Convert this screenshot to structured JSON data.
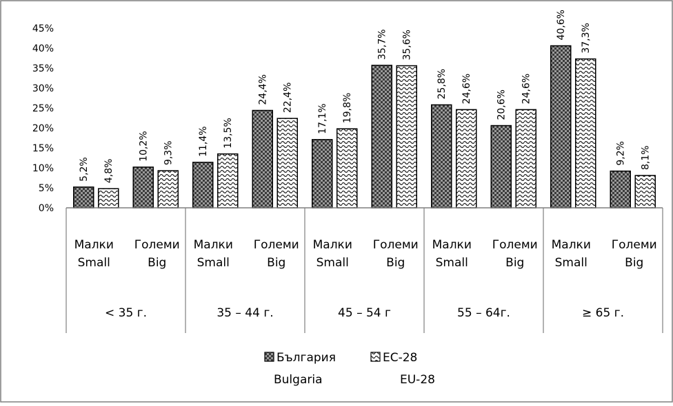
{
  "chart_data": {
    "type": "bar",
    "title": "",
    "xlabel": "",
    "ylabel": "",
    "ylim": [
      0,
      45
    ],
    "yticks": [
      "0%",
      "5%",
      "10%",
      "15%",
      "20%",
      "25%",
      "30%",
      "35%",
      "40%",
      "45%"
    ],
    "grid": false,
    "legend_position": "bottom",
    "groups": [
      {
        "label": "< 35 г.",
        "categories": [
          {
            "line1": "Малки",
            "line2": "Small"
          },
          {
            "line1": "Големи",
            "line2": "Big"
          }
        ]
      },
      {
        "label": "35 – 44 г.",
        "categories": [
          {
            "line1": "Малки",
            "line2": "Small"
          },
          {
            "line1": "Големи",
            "line2": "Big"
          }
        ]
      },
      {
        "label": "45 – 54 г",
        "categories": [
          {
            "line1": "Малки",
            "line2": "Small"
          },
          {
            "line1": "Големи",
            "line2": "Big"
          }
        ]
      },
      {
        "label": "55 – 64г.",
        "categories": [
          {
            "line1": "Малки",
            "line2": "Small"
          },
          {
            "line1": "Големи",
            "line2": "Big"
          }
        ]
      },
      {
        "label": "≥ 65 г.",
        "categories": [
          {
            "line1": "Малки",
            "line2": "Small"
          },
          {
            "line1": "Големи",
            "line2": "Big"
          }
        ]
      }
    ],
    "series": [
      {
        "name": "България",
        "name_en": "Bulgaria",
        "pattern": "checker-dark",
        "values": [
          5.2,
          10.2,
          11.4,
          24.4,
          17.1,
          35.7,
          25.8,
          20.6,
          40.6,
          9.2
        ],
        "labels": [
          "5,2%",
          "10,2%",
          "11,4%",
          "24,4%",
          "17,1%",
          "35,7%",
          "25,8%",
          "20,6%",
          "40,6%",
          "9,2%"
        ]
      },
      {
        "name": "ЕС-28",
        "name_en": "EU-28",
        "pattern": "wave-light",
        "values": [
          4.8,
          9.3,
          13.5,
          22.4,
          19.8,
          35.6,
          24.6,
          24.6,
          37.3,
          8.1
        ],
        "labels": [
          "4,8%",
          "9,3%",
          "13,5%",
          "22,4%",
          "19,8%",
          "35,6%",
          "24,6%",
          "24,6%",
          "37,3%",
          "8,1%"
        ]
      }
    ]
  }
}
